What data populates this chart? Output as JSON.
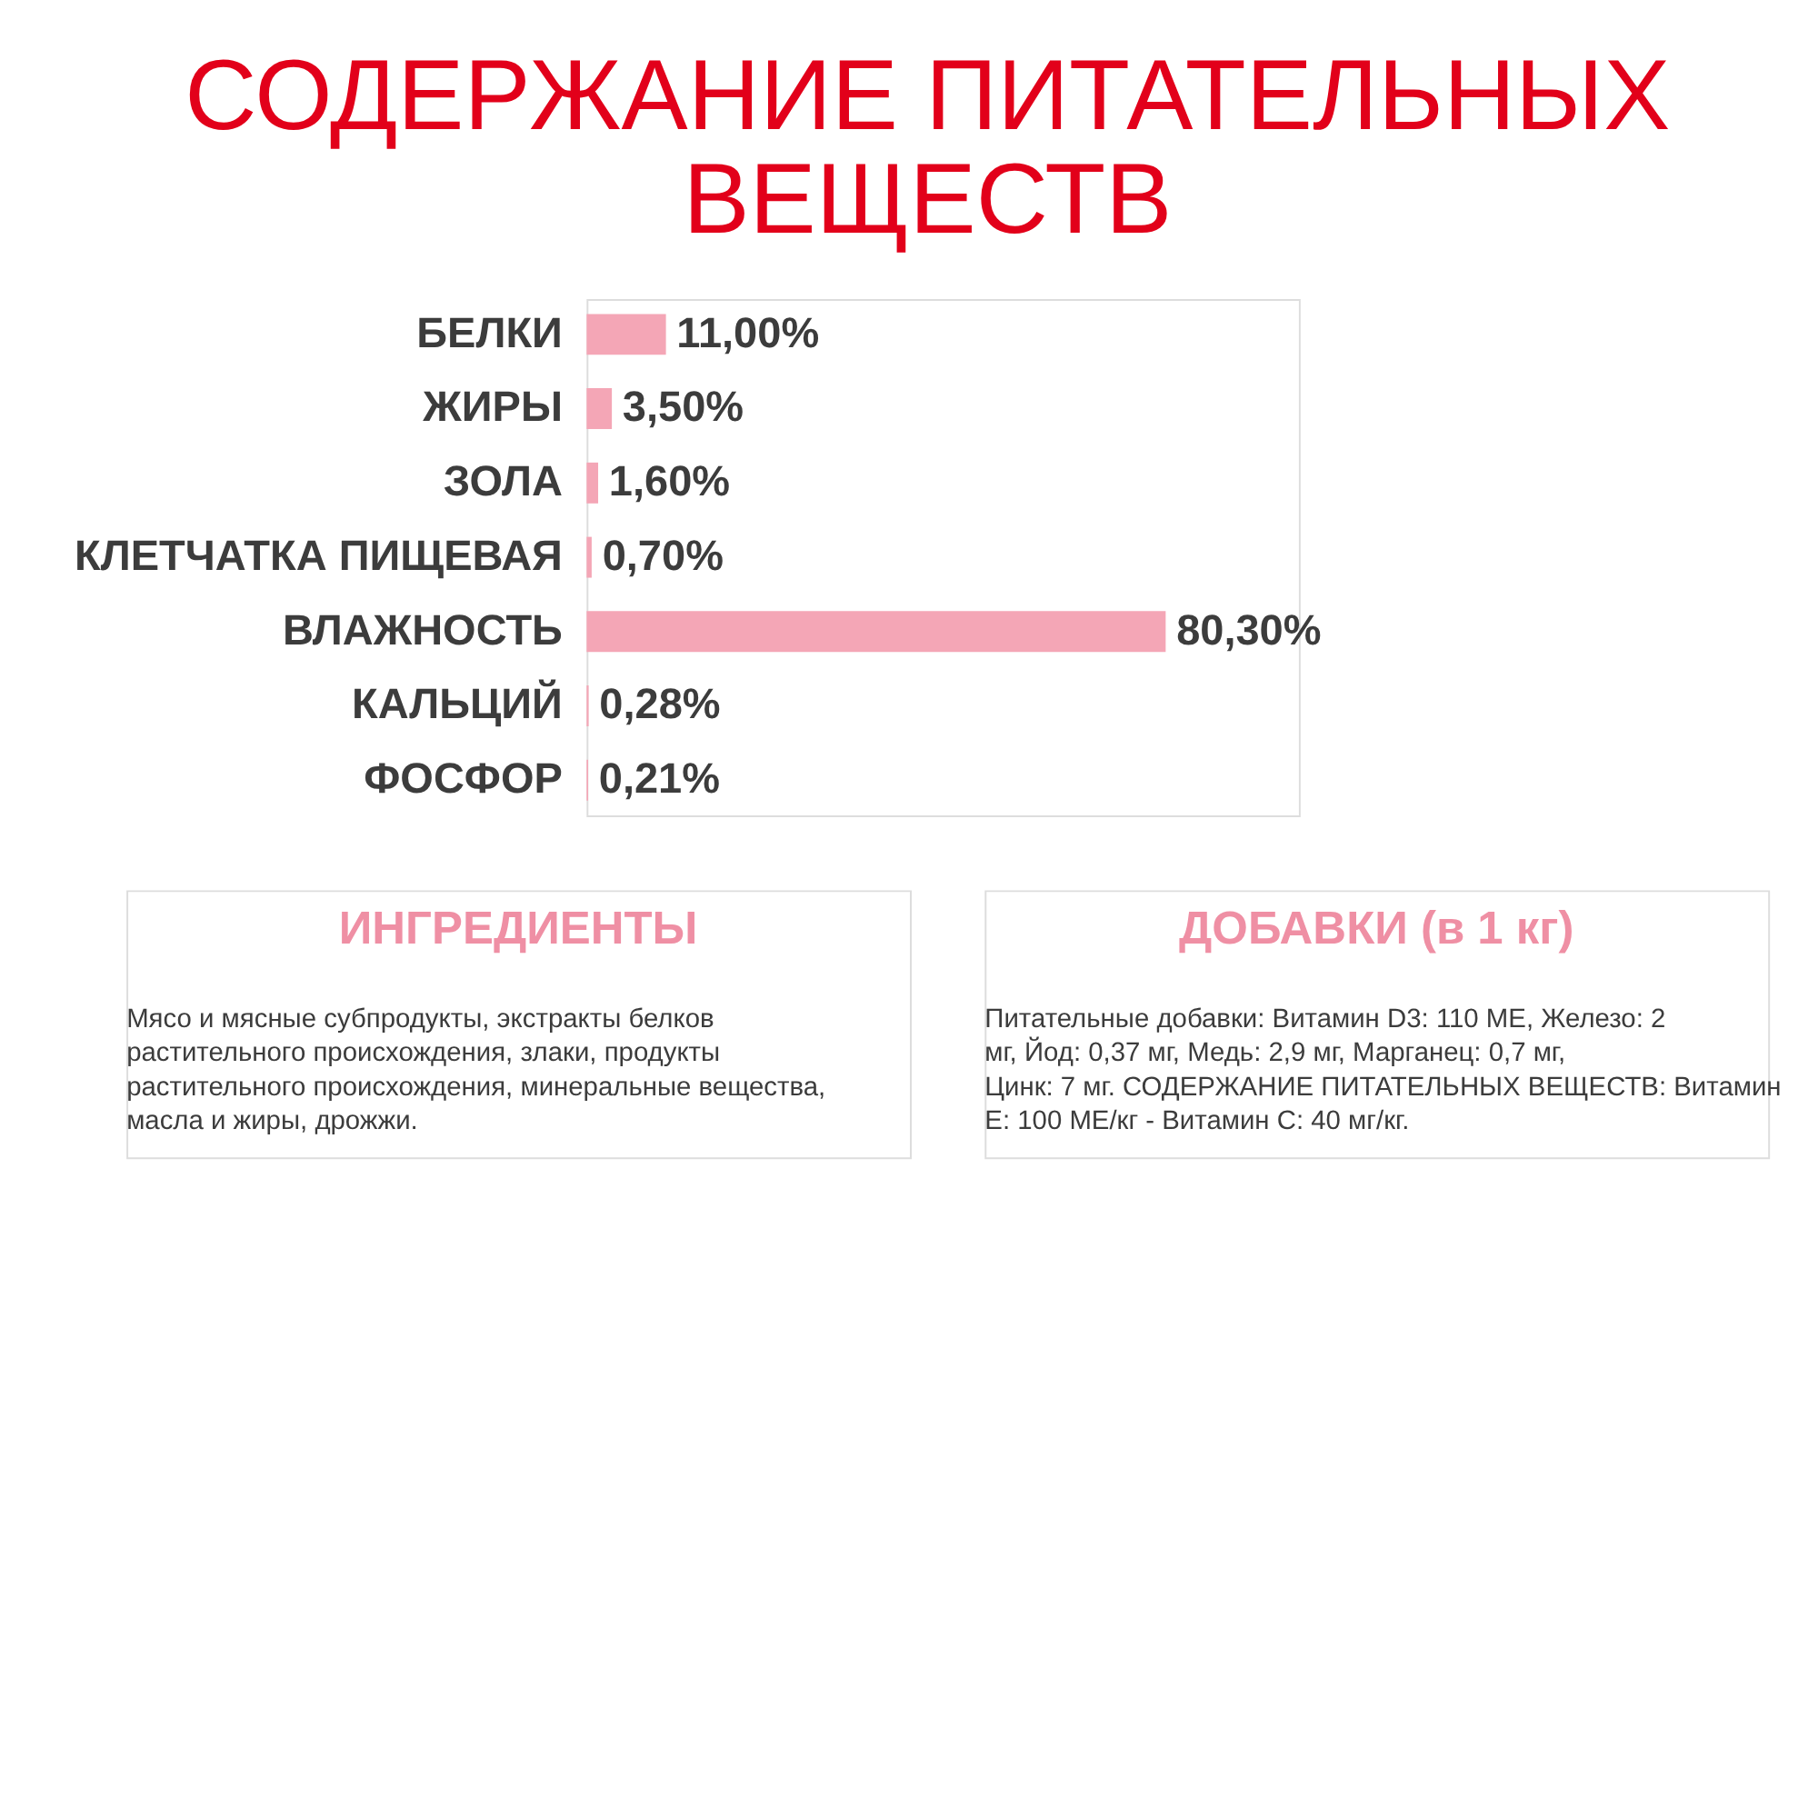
{
  "chart_data": {
    "type": "bar",
    "orientation": "horizontal",
    "title": [
      "СОДЕРЖАНИЕ ПИТАТЕЛЬНЫХ",
      "ВЕЩЕСТВ"
    ],
    "categories": [
      "БЕЛКИ",
      "ЖИРЫ",
      "ЗОЛА",
      "КЛЕТЧАТКА ПИЩЕВАЯ",
      "ВЛАЖНОСТЬ",
      "КАЛЬЦИЙ",
      "ФОСФОР"
    ],
    "values": [
      11.0,
      3.5,
      1.6,
      0.7,
      80.3,
      0.28,
      0.21
    ],
    "value_labels": [
      "11,00%",
      "3,50%",
      "1,60%",
      "0,70%",
      "80,30%",
      "0,28%",
      "0,21%"
    ],
    "color": "#f4a6b6",
    "tick_labels": "y",
    "grid": false,
    "annotations": [
      "ИНГРЕДИЕНТЫ",
      "Мясо и мясные субпродукты, экстракты белков растительного происхождения, злаки, продукты растительного происхождения, минеральные вещества, масла и жиры, дрожжи.",
      "ДОБАВКИ (в 1 кг)",
      "Питательные добавки: Витамин D3: 110 МЕ, Железо: 2 мг, Йод: 0,37 мг, Медь: 2,9 мг, Марганец: 0,7 мг, Цинк: 7 мг. СОДЕРЖАНИЕ ПИТАТЕЛЬНЫХ ВЕЩЕСТВ: Витамин Е: 100 МЕ/кг - Витамин С: 40 мг/кг."
    ]
  }
}
